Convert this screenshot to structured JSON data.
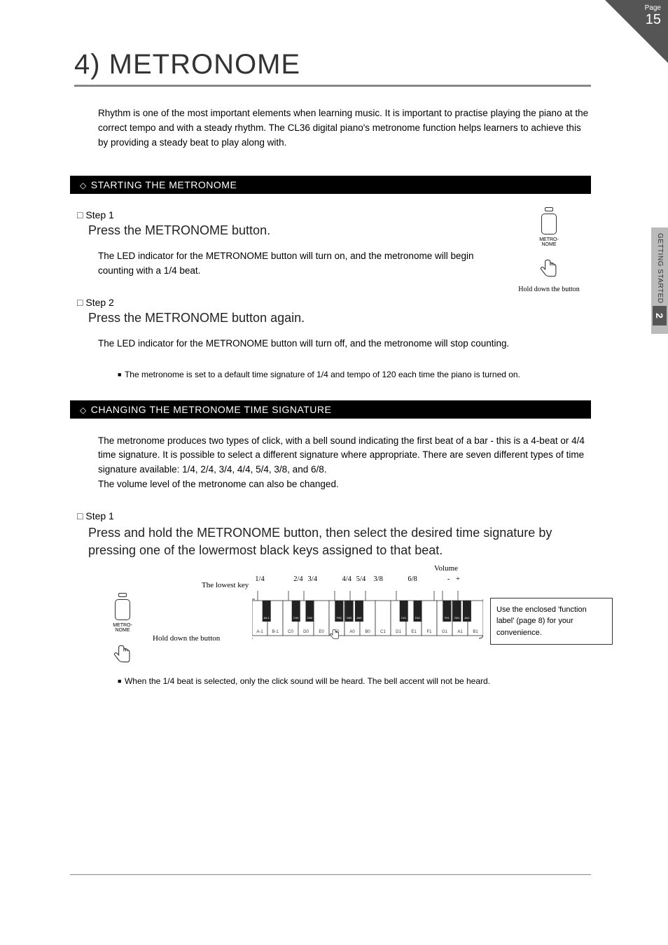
{
  "page": {
    "label": "Page",
    "number": "15"
  },
  "sideTab": {
    "chapter": "2",
    "text": "GETTING STARTED"
  },
  "title": "4) METRONOME",
  "intro": "Rhythm is one of the most important elements when learning music. It is important to practise playing the piano at the correct tempo and with a steady rhythm. The CL36 digital piano's metronome function helps learners to achieve this by providing a steady beat to play along with.",
  "sectionA": {
    "header": "STARTING THE METRONOME",
    "step1": {
      "label": "Step 1",
      "action": "Press the METRONOME button.",
      "body": "The LED indicator for the METRONOME button will turn on, and the metronome will begin counting with a 1/4 beat."
    },
    "step2": {
      "label": "Step 2",
      "action": "Press the METRONOME button again.",
      "body": "The LED indicator for the METRONOME button will turn off, and the metronome will stop counting."
    },
    "note": "The metronome is set to a default time signature of 1/4 and tempo of 120 each time the piano is turned on."
  },
  "illus": {
    "btnLabel": "METRO-\nNOME",
    "holdLabel": "Hold down the button"
  },
  "sectionB": {
    "header": "CHANGING THE METRONOME TIME SIGNATURE",
    "intro": "The metronome produces two types of click, with a bell sound indicating the first beat of a bar - this is a 4-beat or 4/4 time signature. It is possible to select a different signature where appropriate. There are seven different types of time signature available: 1/4, 2/4, 3/4, 4/4, 5/4, 3/8, and 6/8.\nThe volume level of the metronome can also be changed.",
    "step1": {
      "label": "Step 1",
      "action": "Press and hold the METRONOME button, then select the desired time signature by pressing one of the lowermost black keys assigned to that beat."
    },
    "keyboard": {
      "lowestKeyLabel": "The lowest key",
      "volumeLabel": "Volume",
      "topLabels": [
        "1/4",
        "2/4",
        "3/4",
        "4/4",
        "5/4",
        "3/8",
        "6/8",
        "-",
        "+"
      ],
      "blackKeys": [
        "A#-1",
        "C#0",
        "D#0",
        "F#0",
        "G#0",
        "A#0",
        "C#1",
        "D#1",
        "F#1",
        "G#1",
        "A#1"
      ],
      "whiteKeys": [
        "A-1",
        "B-1",
        "C0",
        "D0",
        "E0",
        "F0",
        "A0",
        "B0",
        "C1",
        "D1",
        "E1",
        "F1",
        "G1",
        "A1",
        "B1"
      ],
      "holdLabel": "Hold down the button",
      "callout": "Use the enclosed 'function label' (page 8) for your convenience."
    },
    "note": "When the 1/4 beat is selected, only the click sound will be heard.  The bell accent will not be heard."
  },
  "style": {
    "black": "#000000",
    "grayRule": "#888888",
    "darkGray": "#555555",
    "text": "#000000"
  }
}
